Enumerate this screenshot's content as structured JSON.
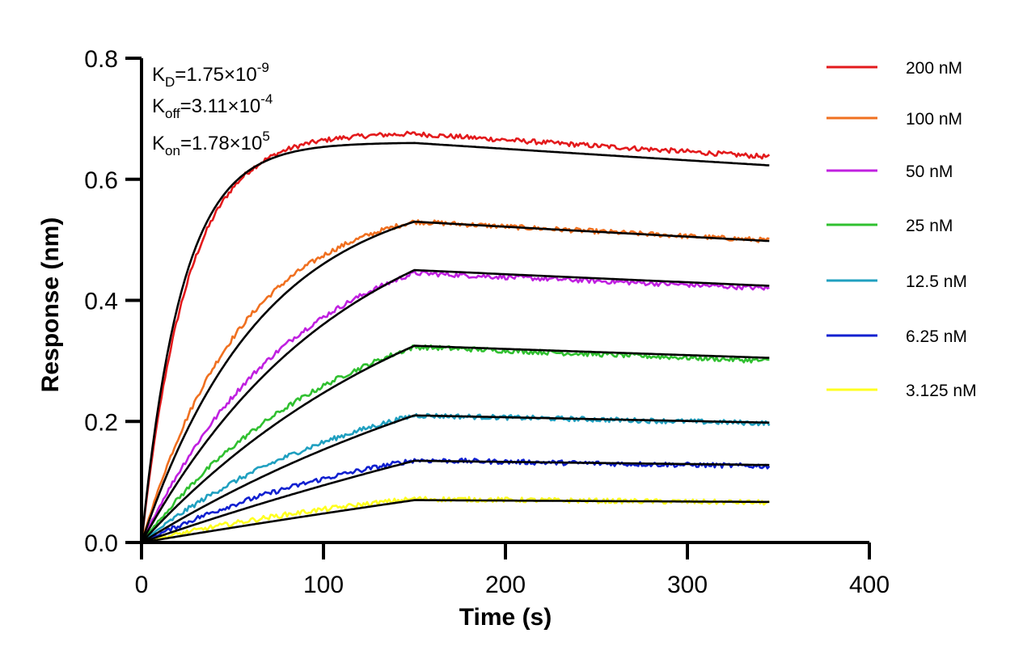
{
  "chart_data": {
    "type": "line",
    "xlabel": "Time (s)",
    "ylabel": "Response (nm)",
    "xlim": [
      0,
      400
    ],
    "ylim": [
      0,
      0.8
    ],
    "xticks": [
      "0",
      "100",
      "200",
      "300",
      "400"
    ],
    "yticks": [
      "0.0",
      "0.2",
      "0.4",
      "0.6",
      "0.8"
    ],
    "grid": false,
    "legend_position": "right",
    "association_end_s": 150,
    "end_s": 345,
    "constants": [
      {
        "sym": "K",
        "sub": "D",
        "val": "=1.75×10",
        "exp": "-9"
      },
      {
        "sym": "K",
        "sub": "off",
        "val": "=3.11×10",
        "exp": "-4"
      },
      {
        "sym": "K",
        "sub": "on",
        "val": "=1.78×10",
        "exp": "5"
      }
    ],
    "fit_color": "#000000",
    "series": [
      {
        "name": "200 nM",
        "color": "#e31a1c",
        "peak": 0.675,
        "fit_peak": 0.66,
        "end": 0.637,
        "fit_end": 0.623,
        "k_obs": 0.04,
        "k_fit": 0.045
      },
      {
        "name": "100 nM",
        "color": "#f07020",
        "peak": 0.53,
        "fit_peak": 0.53,
        "end": 0.499,
        "fit_end": 0.498,
        "k_obs": 0.018,
        "k_fit": 0.015
      },
      {
        "name": "50 nM",
        "color": "#c020e0",
        "peak": 0.445,
        "fit_peak": 0.45,
        "end": 0.42,
        "fit_end": 0.424,
        "k_obs": 0.012,
        "k_fit": 0.009
      },
      {
        "name": "25 nM",
        "color": "#30c030",
        "peak": 0.323,
        "fit_peak": 0.325,
        "end": 0.3,
        "fit_end": 0.305,
        "k_obs": 0.009,
        "k_fit": 0.006
      },
      {
        "name": "12.5 nM",
        "color": "#20a0c0",
        "peak": 0.21,
        "fit_peak": 0.21,
        "end": 0.197,
        "fit_end": 0.198,
        "k_obs": 0.008,
        "k_fit": 0.004
      },
      {
        "name": "6.25 nM",
        "color": "#1020d0",
        "peak": 0.136,
        "fit_peak": 0.135,
        "end": 0.126,
        "fit_end": 0.128,
        "k_obs": 0.007,
        "k_fit": 0.002
      },
      {
        "name": "3.125 nM",
        "color": "#ffff20",
        "peak": 0.072,
        "fit_peak": 0.07,
        "end": 0.066,
        "fit_end": 0.067,
        "k_obs": 0.006,
        "k_fit": 0.001
      }
    ]
  }
}
